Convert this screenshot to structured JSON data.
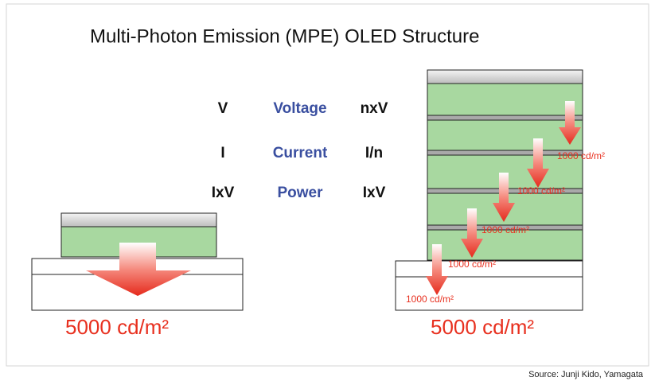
{
  "title": "Multi-Photon Emission (MPE) OLED Structure",
  "comparison": {
    "rows": [
      [
        "V",
        "Voltage",
        "nxV"
      ],
      [
        "I",
        "Current",
        "I/n"
      ],
      [
        "IxV",
        "Power",
        "IxV"
      ]
    ]
  },
  "single_unit": {
    "output": "5000 cd/m²"
  },
  "stacked_units": {
    "output": "5000 cd/m²",
    "unit_outputs": [
      "1000 cd/m²",
      "1000 cd/m²",
      "1000 cd/m²",
      "1000 cd/m²",
      "1000 cd/m²"
    ]
  },
  "source": "Source: Junji Kido, Yamagata"
}
